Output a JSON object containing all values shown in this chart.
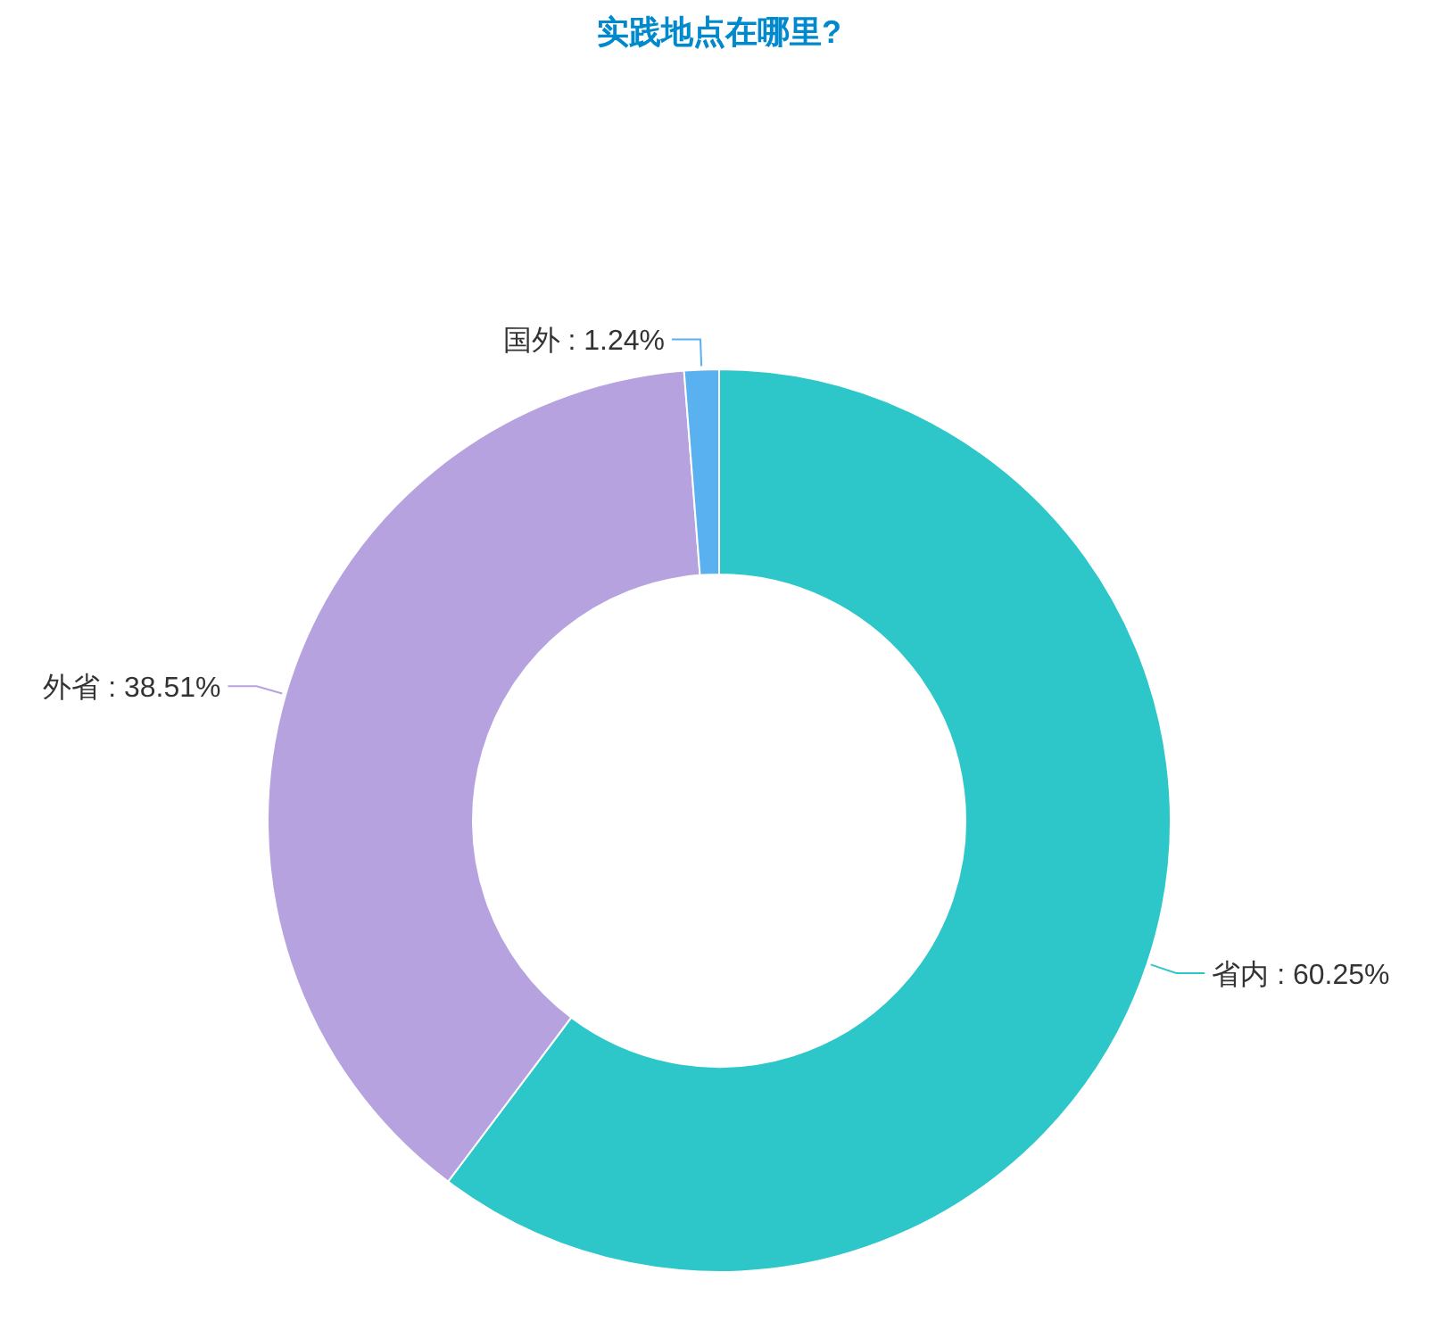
{
  "chart_data": {
    "type": "donut",
    "title": "实践地点在哪里?",
    "categories": [
      "省内",
      "外省",
      "国外"
    ],
    "values": [
      60.25,
      38.51,
      1.24
    ],
    "colors": [
      "#2ec7c9",
      "#b6a2de",
      "#5ab1ef"
    ],
    "value_labels": [
      ": 60.25%",
      ": 38.51%",
      ": 1.24%"
    ],
    "legend": false
  }
}
